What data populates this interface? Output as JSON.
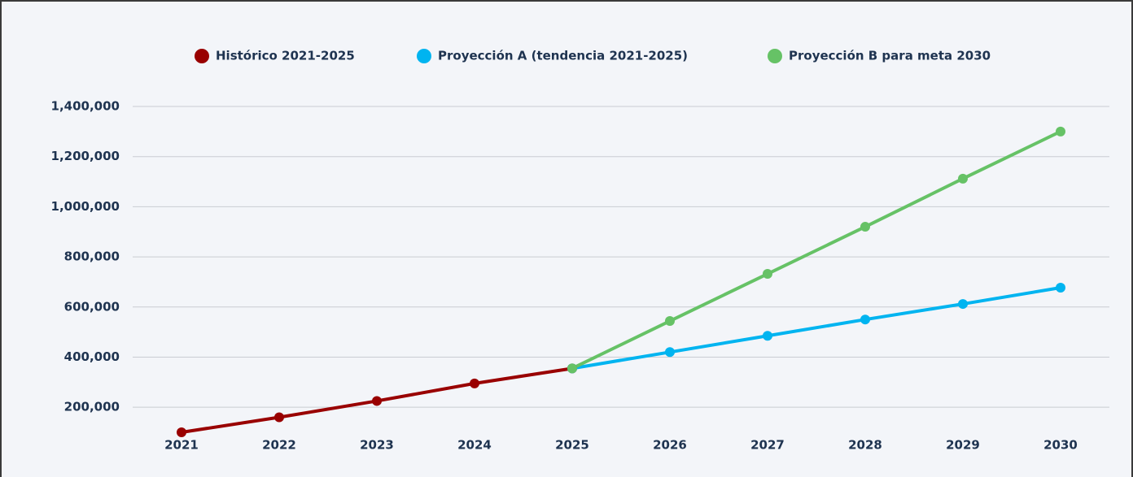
{
  "chart_data": {
    "type": "line",
    "categories": [
      "2021",
      "2022",
      "2023",
      "2024",
      "2025",
      "2026",
      "2027",
      "2028",
      "2029",
      "2030"
    ],
    "series": [
      {
        "name": "Histórico 2021-2025",
        "color": "#990000",
        "values": [
          100000,
          160000,
          225000,
          295000,
          355000,
          null,
          null,
          null,
          null,
          null
        ]
      },
      {
        "name": "Proyección A (tendencia 2021-2025)",
        "color": "#00b4f0",
        "values": [
          null,
          null,
          null,
          null,
          355000,
          420000,
          485000,
          550000,
          612000,
          677000
        ]
      },
      {
        "name": "Proyección B para meta 2030",
        "color": "#66c266",
        "values": [
          null,
          null,
          null,
          null,
          355000,
          544000,
          732000,
          920000,
          1112000,
          1300000
        ]
      }
    ],
    "ylim": [
      100000,
      1400000
    ],
    "yticks": [
      {
        "value": 200000,
        "label": "200,000"
      },
      {
        "value": 400000,
        "label": "400,000"
      },
      {
        "value": 600000,
        "label": "600,000"
      },
      {
        "value": 800000,
        "label": "800,000"
      },
      {
        "value": 1000000,
        "label": "1,000,000"
      },
      {
        "value": 1200000,
        "label": "1,200,000"
      },
      {
        "value": 1400000,
        "label": "1,400,000"
      }
    ],
    "grid": true,
    "legend": "top"
  }
}
